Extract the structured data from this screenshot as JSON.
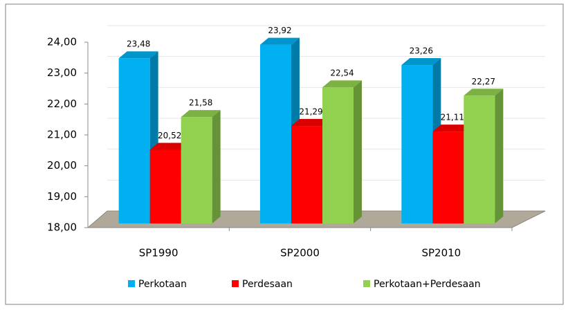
{
  "chart_data": {
    "type": "bar3d",
    "categories": [
      "SP1990",
      "SP2000",
      "SP2010"
    ],
    "series": [
      {
        "name": "Perkotaan",
        "color": "#00b0f0",
        "values": [
          23.48,
          23.92,
          23.26
        ],
        "value_labels": [
          "23,48",
          "23,92",
          "23,26"
        ]
      },
      {
        "name": "Perdesaan",
        "color": "#ff0000",
        "values": [
          20.52,
          21.29,
          21.11
        ],
        "value_labels": [
          "20,52",
          "21,29",
          "21,11"
        ]
      },
      {
        "name": "Perkotaan+Perdesaan",
        "color": "#92d050",
        "values": [
          21.58,
          22.54,
          22.27
        ],
        "value_labels": [
          "21,58",
          "22,54",
          "22,27"
        ]
      }
    ],
    "ylim": [
      18,
      24
    ],
    "yticks": [
      {
        "value": 18,
        "label": "18,00"
      },
      {
        "value": 19,
        "label": "19,00"
      },
      {
        "value": 20,
        "label": "20,00"
      },
      {
        "value": 21,
        "label": "21,00"
      },
      {
        "value": 22,
        "label": "22,00"
      },
      {
        "value": 23,
        "label": "23,00"
      },
      {
        "value": 24,
        "label": "24,00"
      }
    ],
    "grid": true
  }
}
